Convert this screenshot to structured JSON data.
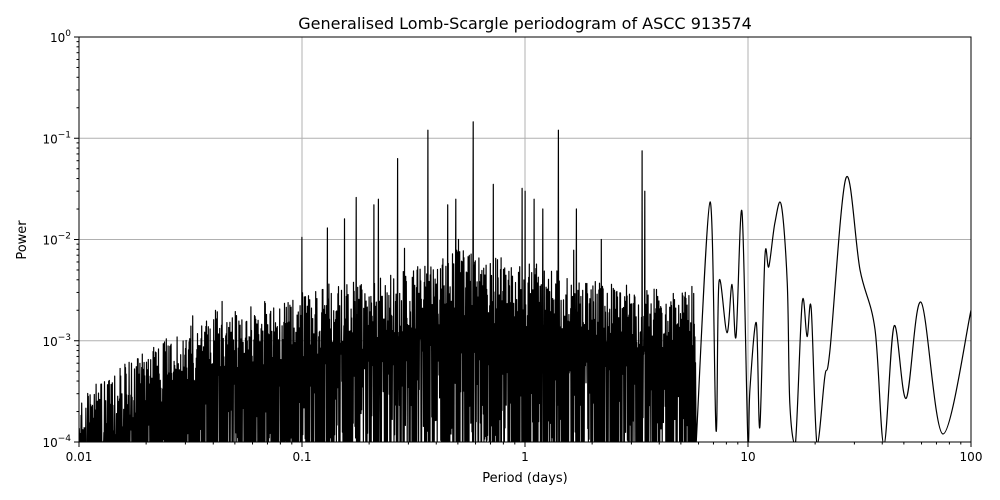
{
  "chart_data": {
    "type": "line",
    "title": "Generalised Lomb-Scargle periodogram of ASCC 913574",
    "xlabel": "Period (days)",
    "ylabel": "Power",
    "xscale": "log",
    "yscale": "log",
    "xlim": [
      0.01,
      100
    ],
    "ylim": [
      0.0001,
      1
    ],
    "grid": true,
    "line_color": "#000000",
    "grid_color": "#b0b0b0",
    "x_ticks": [
      {
        "value": 0.01,
        "label": "0.01"
      },
      {
        "value": 0.1,
        "label": "0.1"
      },
      {
        "value": 1,
        "label": "1"
      },
      {
        "value": 10,
        "label": "10"
      },
      {
        "value": 100,
        "label": "100"
      }
    ],
    "y_ticks": [
      {
        "value": 0.0001,
        "base": "10",
        "exp": "−4"
      },
      {
        "value": 0.001,
        "base": "10",
        "exp": "−3"
      },
      {
        "value": 0.01,
        "base": "10",
        "exp": "−2"
      },
      {
        "value": 0.1,
        "base": "10",
        "exp": "−1"
      },
      {
        "value": 1,
        "base": "10",
        "exp": "0"
      }
    ],
    "noise_envelope": [
      [
        0.01,
        0.0003
      ],
      [
        0.02,
        0.0008
      ],
      [
        0.04,
        0.002
      ],
      [
        0.1,
        0.003
      ],
      [
        0.3,
        0.005
      ],
      [
        0.5,
        0.008
      ],
      [
        1,
        0.006
      ],
      [
        2,
        0.004
      ],
      [
        5.85,
        0.003
      ]
    ],
    "peaks": [
      [
        0.1,
        0.0105
      ],
      [
        0.13,
        0.013
      ],
      [
        0.155,
        0.016
      ],
      [
        0.175,
        0.026
      ],
      [
        0.21,
        0.022
      ],
      [
        0.22,
        0.025
      ],
      [
        0.268,
        0.063
      ],
      [
        0.367,
        0.12
      ],
      [
        0.45,
        0.022
      ],
      [
        0.49,
        0.025
      ],
      [
        0.585,
        0.145
      ],
      [
        0.72,
        0.035
      ],
      [
        0.97,
        0.032
      ],
      [
        1.0,
        0.03
      ],
      [
        1.1,
        0.025
      ],
      [
        1.2,
        0.02
      ],
      [
        1.41,
        0.12
      ],
      [
        1.7,
        0.02
      ],
      [
        2.2,
        0.01
      ],
      [
        3.35,
        0.075
      ],
      [
        3.45,
        0.03
      ]
    ],
    "long_period_curve": [
      [
        5.85,
        5e-05
      ],
      [
        6.76,
        0.0235
      ],
      [
        7.19,
        0.00013
      ],
      [
        7.41,
        0.0038
      ],
      [
        8.05,
        0.0012
      ],
      [
        8.48,
        0.0036
      ],
      [
        8.84,
        0.0011
      ],
      [
        9.4,
        0.0187
      ],
      [
        10.0,
        5e-05
      ],
      [
        10.2,
        0.00033
      ],
      [
        10.9,
        0.0015
      ],
      [
        11.3,
        0.00014
      ],
      [
        11.9,
        0.0066
      ],
      [
        12.4,
        0.0054
      ],
      [
        13.2,
        0.0146
      ],
      [
        14.1,
        0.0219
      ],
      [
        15.0,
        0.0037
      ],
      [
        15.4,
        0.00024
      ],
      [
        16.3,
        5e-05
      ],
      [
        17.5,
        0.0024
      ],
      [
        18.4,
        0.0011
      ],
      [
        19.2,
        0.0021
      ],
      [
        20.4,
        5e-05
      ],
      [
        22.1,
        0.00044
      ],
      [
        23.3,
        0.0008
      ],
      [
        27.5,
        0.0405
      ],
      [
        31.8,
        0.005
      ],
      [
        37.1,
        0.0013
      ],
      [
        40.7,
        5e-05
      ],
      [
        45.2,
        0.0014
      ],
      [
        51.2,
        0.00027
      ],
      [
        59.7,
        0.0024
      ],
      [
        74.8,
        0.00012
      ],
      [
        100,
        0.002
      ]
    ]
  }
}
